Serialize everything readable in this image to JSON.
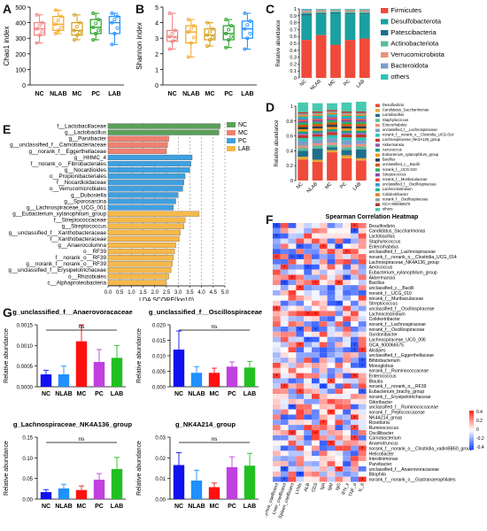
{
  "panel_labels": {
    "a": "A",
    "b": "B",
    "c": "C",
    "d": "D",
    "e": "E",
    "f": "F",
    "g": "G"
  },
  "colors": {
    "NC": "#f08080",
    "NLAB": "#f5a623",
    "MC": "#e0b040",
    "PC": "#20a020",
    "LAB": "#1e90ff"
  },
  "chart_data": [
    {
      "id": "A",
      "type": "box",
      "ylabel": "Chao1 index",
      "categories": [
        "NC",
        "NLAB",
        "MC",
        "PC",
        "LAB"
      ],
      "ylim": [
        0,
        500
      ],
      "yticks": [
        0,
        100,
        200,
        300,
        400,
        500
      ],
      "boxes": [
        {
          "name": "NC",
          "min": 270,
          "q1": 320,
          "median": 360,
          "q3": 400,
          "max": 450
        },
        {
          "name": "NLAB",
          "min": 330,
          "q1": 350,
          "median": 390,
          "q3": 440,
          "max": 480
        },
        {
          "name": "MC",
          "min": 290,
          "q1": 320,
          "median": 350,
          "q3": 400,
          "max": 450
        },
        {
          "name": "PC",
          "min": 290,
          "q1": 330,
          "median": 370,
          "q3": 420,
          "max": 460
        },
        {
          "name": "LAB",
          "min": 260,
          "q1": 330,
          "median": 400,
          "q3": 440,
          "max": 460
        }
      ]
    },
    {
      "id": "B",
      "type": "box",
      "ylabel": "Shannon index",
      "categories": [
        "NC",
        "NLAB",
        "MC",
        "PC",
        "LAB"
      ],
      "ylim": [
        0,
        5
      ],
      "yticks": [
        0,
        1,
        2,
        3,
        4,
        5
      ],
      "boxes": [
        {
          "name": "NC",
          "min": 2.3,
          "q1": 2.8,
          "median": 3.1,
          "q3": 3.5,
          "max": 4.6
        },
        {
          "name": "NLAB",
          "min": 1.8,
          "q1": 2.7,
          "median": 3.4,
          "q3": 3.8,
          "max": 4.2
        },
        {
          "name": "MC",
          "min": 2.5,
          "q1": 2.9,
          "median": 3.2,
          "q3": 3.6,
          "max": 4.0
        },
        {
          "name": "PC",
          "min": 2.4,
          "q1": 2.9,
          "median": 3.3,
          "q3": 3.8,
          "max": 4.2
        },
        {
          "name": "LAB",
          "min": 2.3,
          "q1": 3.0,
          "median": 3.6,
          "q3": 4.1,
          "max": 4.6
        }
      ]
    },
    {
      "id": "C",
      "type": "bar",
      "stacked": true,
      "ylabel": "Relative abundance",
      "categories": [
        "NC",
        "NLAB",
        "MC",
        "PC",
        "LAB"
      ],
      "ylim": [
        0,
        1.0
      ],
      "yticks": [
        0,
        0.1,
        0.2,
        0.3,
        0.4,
        0.5,
        0.6,
        0.7,
        0.8,
        0.9,
        1.0
      ],
      "series": [
        {
          "name": "Firmicutes",
          "color": "#f04a3a",
          "values": [
            0.55,
            0.62,
            0.48,
            0.55,
            0.57
          ]
        },
        {
          "name": "Desulfobacterota",
          "color": "#1aa0a0",
          "values": [
            0.35,
            0.3,
            0.45,
            0.37,
            0.35
          ]
        },
        {
          "name": "Patescibacteria",
          "color": "#1f6f8b",
          "values": [
            0.03,
            0.02,
            0.02,
            0.02,
            0.02
          ]
        },
        {
          "name": "Actinobacteriota",
          "color": "#5dbb9a",
          "values": [
            0.02,
            0.02,
            0.02,
            0.02,
            0.02
          ]
        },
        {
          "name": "Verrucomicrobiota",
          "color": "#ef8f7a",
          "values": [
            0.02,
            0.02,
            0.01,
            0.02,
            0.02
          ]
        },
        {
          "name": "Bacteroidota",
          "color": "#7a9fc8",
          "values": [
            0.02,
            0.01,
            0.01,
            0.01,
            0.01
          ]
        },
        {
          "name": "others",
          "color": "#2ec4b6",
          "values": [
            0.01,
            0.01,
            0.01,
            0.01,
            0.01
          ]
        }
      ]
    },
    {
      "id": "D",
      "type": "bar",
      "stacked": true,
      "ylabel": "Relative abundance",
      "categories": [
        "NC",
        "NLAB",
        "MC",
        "PC",
        "LAB"
      ],
      "ylim": [
        0,
        1.0
      ],
      "yticks": [
        0,
        0.2,
        0.4,
        0.6,
        0.8,
        1.0
      ],
      "series": [
        {
          "name": "Desulfovibrio",
          "color": "#f04a3a",
          "values": [
            0.28,
            0.25,
            0.38,
            0.3,
            0.27
          ]
        },
        {
          "name": "Candidatus_Saccharimonas",
          "color": "#e8a838",
          "values": [
            0.04,
            0.03,
            0.03,
            0.04,
            0.03
          ]
        },
        {
          "name": "Lactobacillus",
          "color": "#1f6f8b",
          "values": [
            0.08,
            0.15,
            0.04,
            0.07,
            0.12
          ]
        },
        {
          "name": "Staphylococcus",
          "color": "#5dbb9a",
          "values": [
            0.04,
            0.04,
            0.03,
            0.04,
            0.04
          ]
        },
        {
          "name": "Enterorhabdus",
          "color": "#ef8f7a",
          "values": [
            0.03,
            0.03,
            0.03,
            0.03,
            0.03
          ]
        },
        {
          "name": "unclassified_f__Lachnospiraceae",
          "color": "#7a9fc8",
          "values": [
            0.06,
            0.05,
            0.06,
            0.06,
            0.05
          ]
        },
        {
          "name": "norank_f__norank_o__Clostridia_UCG-014",
          "color": "#2ec4b6",
          "values": [
            0.04,
            0.04,
            0.04,
            0.04,
            0.04
          ]
        },
        {
          "name": "Lachnospiraceae_NK4A136_group",
          "color": "#c0392b",
          "values": [
            0.04,
            0.03,
            0.04,
            0.04,
            0.04
          ]
        },
        {
          "name": "Akkermansia",
          "color": "#9b59b6",
          "values": [
            0.02,
            0.02,
            0.01,
            0.02,
            0.02
          ]
        },
        {
          "name": "Aerococcus",
          "color": "#16a085",
          "values": [
            0.03,
            0.03,
            0.03,
            0.03,
            0.03
          ]
        },
        {
          "name": "Eubacterium_xylanophilum_group",
          "color": "#f39c12",
          "values": [
            0.03,
            0.03,
            0.03,
            0.03,
            0.03
          ]
        },
        {
          "name": "Bacillus",
          "color": "#2c3e50",
          "values": [
            0.03,
            0.03,
            0.03,
            0.03,
            0.03
          ]
        },
        {
          "name": "unclassified_c__Bacilli",
          "color": "#d35400",
          "values": [
            0.03,
            0.03,
            0.03,
            0.03,
            0.03
          ]
        },
        {
          "name": "norank_f__UCG-010",
          "color": "#27ae60",
          "values": [
            0.03,
            0.03,
            0.03,
            0.03,
            0.03
          ]
        },
        {
          "name": "Streptococcus",
          "color": "#8e44ad",
          "values": [
            0.02,
            0.02,
            0.02,
            0.02,
            0.02
          ]
        },
        {
          "name": "norank_f__Muribaculaceae",
          "color": "#e74c3c",
          "values": [
            0.02,
            0.02,
            0.02,
            0.02,
            0.02
          ]
        },
        {
          "name": "unclassified_f__Oscillospiraceae",
          "color": "#3498db",
          "values": [
            0.02,
            0.02,
            0.02,
            0.02,
            0.02
          ]
        },
        {
          "name": "Lachnoclostridium",
          "color": "#1abc9c",
          "values": [
            0.02,
            0.02,
            0.02,
            0.02,
            0.02
          ]
        },
        {
          "name": "Colidextribacter",
          "color": "#e67e22",
          "values": [
            0.02,
            0.02,
            0.02,
            0.02,
            0.02
          ]
        },
        {
          "name": "norank_f__Oscillospiraceae",
          "color": "#95a5a6",
          "values": [
            0.02,
            0.02,
            0.02,
            0.02,
            0.02
          ]
        },
        {
          "name": "GCA-900066575",
          "color": "#b03a2e",
          "values": [
            0.02,
            0.02,
            0.02,
            0.02,
            0.02
          ]
        },
        {
          "name": "others",
          "color": "#48c9b0",
          "values": [
            0.13,
            0.11,
            0.09,
            0.12,
            0.13
          ]
        }
      ]
    },
    {
      "id": "E",
      "type": "bar",
      "orientation": "horizontal",
      "xlabel": "LDA SCORE(log10)",
      "xlim": [
        0,
        5
      ],
      "xticks": [
        "0.0",
        "0.5",
        "1.0",
        "1.5",
        "2.0",
        "2.5",
        "3.0",
        "3.5",
        "4.0",
        "4.5",
        "5.0"
      ],
      "legend": [
        {
          "name": "NC",
          "color": "#5aa05a"
        },
        {
          "name": "MC",
          "color": "#f08070"
        },
        {
          "name": "PC",
          "color": "#3fa0e0"
        },
        {
          "name": "LAB",
          "color": "#f5b84a"
        }
      ],
      "bars": [
        {
          "label": "f__Lactobacillaceae",
          "group": "NC",
          "value": 4.8
        },
        {
          "label": "g__Lactobacillus",
          "group": "NC",
          "value": 4.75
        },
        {
          "label": "g__Parvibacter",
          "group": "MC",
          "value": 2.6
        },
        {
          "label": "g__unclassified_f__Carnobacteriaceae",
          "group": "MC",
          "value": 2.55
        },
        {
          "label": "g__norank_f__Eggerthellaceae",
          "group": "MC",
          "value": 2.5
        },
        {
          "label": "g__HHMC_4",
          "group": "PC",
          "value": 3.6
        },
        {
          "label": "f__norank_o__Fibrobacterales",
          "group": "PC",
          "value": 3.55
        },
        {
          "label": "g__Nocardioides",
          "group": "PC",
          "value": 3.5
        },
        {
          "label": "o__Propionibacteriales",
          "group": "PC",
          "value": 3.3
        },
        {
          "label": "f__Nocardioidaceae",
          "group": "PC",
          "value": 3.25
        },
        {
          "label": "o__Verrucomicrobiales",
          "group": "PC",
          "value": 3.2
        },
        {
          "label": "g__Dubosiella",
          "group": "PC",
          "value": 3.0
        },
        {
          "label": "g__Sporosarcina",
          "group": "PC",
          "value": 2.9
        },
        {
          "label": "g__Lachnospiraceae_UCG_001",
          "group": "PC",
          "value": 2.8
        },
        {
          "label": "g__Eubacterium_xylanophilum_group",
          "group": "LAB",
          "value": 3.9
        },
        {
          "label": "f__Streptococcaceae",
          "group": "LAB",
          "value": 3.3
        },
        {
          "label": "g__Streptococcus",
          "group": "LAB",
          "value": 3.25
        },
        {
          "label": "g__unclassified_f__Xanthobacteraceae",
          "group": "LAB",
          "value": 3.1
        },
        {
          "label": "f__Xanthobacteraceae",
          "group": "LAB",
          "value": 3.05
        },
        {
          "label": "g__Anaerocolumna",
          "group": "LAB",
          "value": 2.9
        },
        {
          "label": "o__RF39",
          "group": "LAB",
          "value": 2.85
        },
        {
          "label": "f__norank_o__RF39",
          "group": "LAB",
          "value": 2.8
        },
        {
          "label": "g__norank_f__norank_o__RF39",
          "group": "LAB",
          "value": 2.75
        },
        {
          "label": "g__unclassified_f__Erysipelotrichaceae",
          "group": "LAB",
          "value": 2.7
        },
        {
          "label": "o__Rhizobiales",
          "group": "LAB",
          "value": 2.6
        },
        {
          "label": "c__Alphaproteobacteria",
          "group": "LAB",
          "value": 2.5
        }
      ]
    },
    {
      "id": "F",
      "type": "heatmap",
      "title": "Spearman Correlation Heatmap",
      "x": [
        "Thymus_coefficient",
        "Liver_coefficient",
        "Spleen_coefficient",
        "LYMs",
        "ALB",
        "CD3",
        "IgA",
        "IgM",
        "IgG",
        "IFN_γ",
        "TNF_α",
        "IL_6"
      ],
      "y": [
        "Desulfovibrio",
        "Candidatus_Saccharimonas",
        "Lactobacillus",
        "Staphylococcus",
        "Enterorhabdus",
        "unclassified_f__Lachnospiraceae",
        "norank_f__norank_o__Clostridia_UCG_014",
        "Lachnospiraceae_NK4A136_group",
        "Aerococcus",
        "Eubacterium_xylanophilum_group",
        "Akkermansia",
        "Bacillus",
        "unclassified_c__Bacilli",
        "norank_f__UCG_010",
        "norank_f__Muribaculaceae",
        "Streptococcus",
        "unclassified_f__Oscillospiraceae",
        "Lachnoclostridium",
        "Colidextribacter",
        "norank_f__Lachnospiraceae",
        "norank_f__Oscillospiraceae",
        "Gordonibacter",
        "Lachnospiraceae_UCG_006",
        "GCA_900066575",
        "Alistipes",
        "unclassified_f__Eggerthellaceae",
        "Bifidobacterium",
        "Monoglobus",
        "norank_f__Ruminococcaceae",
        "Enterococcus",
        "Blautia",
        "norank_f__norank_o__RF39",
        "Eubacterium_brachy_group",
        "norank_f__Erysipelotrichaceae",
        "Odoribacter",
        "unclassified_f__Ruminococcaceae",
        "norank_f__Peptococcaceae",
        "NK4A214_group",
        "Roseburia",
        "Ruminococcus",
        "Oscillibacter",
        "Carnobacterium",
        "Anaerotruncus",
        "norank_f__norank_o__Clostridia_vadinBB60_group",
        "Helicobacter",
        "Intestinimonas",
        "Parvibacter",
        "unclassified_f__Anaerovoracaceae",
        "Bilophila",
        "norank_f__norank_o__Gastranaerophilales"
      ],
      "colorbar_ticks": [
        "0.4",
        "0.2",
        "0",
        "-0.2",
        "-0.4"
      ]
    },
    {
      "id": "G1",
      "type": "bar",
      "title": "g_unclassified_f__Anaerovoracaceae",
      "ylabel": "Relative abundance",
      "categories": [
        "NC",
        "NLAB",
        "MC",
        "PC",
        "LAB"
      ],
      "ylim": [
        0,
        0.0015
      ],
      "yticks": [
        "0.0000",
        "0.0005",
        "0.0010",
        "0.0015"
      ],
      "annotation": "ns",
      "values": [
        0.0003,
        0.0003,
        0.0011,
        0.0006,
        0.0007
      ],
      "errors": [
        0.0001,
        0.0002,
        0.0004,
        0.0003,
        0.0003
      ]
    },
    {
      "id": "G2",
      "type": "bar",
      "title": "g_unclassified_f__Oscillospiraceae",
      "ylabel": "Relative abundance",
      "categories": [
        "NC",
        "NLAB",
        "MC",
        "PC",
        "LAB"
      ],
      "ylim": [
        0,
        0.02
      ],
      "yticks": [
        "0.000",
        "0.005",
        "0.010",
        "0.015",
        "0.020"
      ],
      "annotation": "ns",
      "values": [
        0.012,
        0.0045,
        0.0045,
        0.0065,
        0.0062
      ],
      "errors": [
        0.006,
        0.002,
        0.0015,
        0.0015,
        0.002
      ]
    },
    {
      "id": "G3",
      "type": "bar",
      "title": "g_Lachnospiraceae_NK4A136_group",
      "ylabel": "Relative abundance",
      "categories": [
        "NC",
        "NLAB",
        "MC",
        "PC",
        "LAB"
      ],
      "ylim": [
        0,
        0.15
      ],
      "yticks": [
        "0.00",
        "0.05",
        "0.10",
        "0.15"
      ],
      "annotation": "ns",
      "values": [
        0.017,
        0.026,
        0.022,
        0.047,
        0.073
      ],
      "errors": [
        0.006,
        0.01,
        0.01,
        0.015,
        0.028
      ]
    },
    {
      "id": "G4",
      "type": "bar",
      "title": "g_NK4A214_group",
      "ylabel": "Relative abundance",
      "categories": [
        "NC",
        "NLAB",
        "MC",
        "PC",
        "LAB"
      ],
      "ylim": [
        0,
        0.03
      ],
      "yticks": [
        "0.00",
        "0.01",
        "0.02",
        "0.03"
      ],
      "annotation": "ns",
      "values": [
        0.0165,
        0.009,
        0.0058,
        0.0155,
        0.0162
      ],
      "errors": [
        0.006,
        0.005,
        0.002,
        0.005,
        0.006
      ]
    }
  ]
}
